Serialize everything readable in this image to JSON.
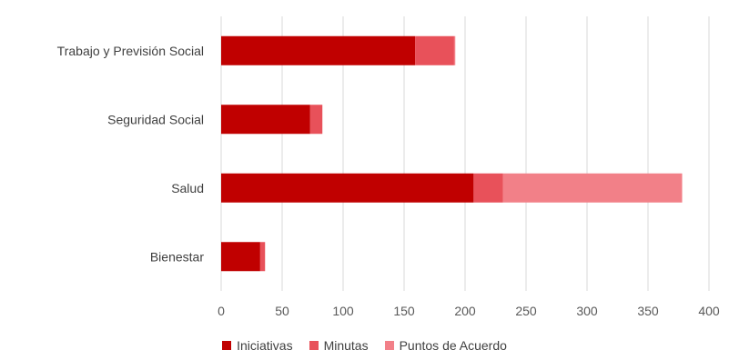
{
  "chart_data": {
    "type": "bar",
    "orientation": "horizontal",
    "stacked": true,
    "categories": [
      "Trabajo y Previsión Social",
      "Seguridad Social",
      "Salud",
      "Bienestar"
    ],
    "series": [
      {
        "name": "Iniciativas",
        "color": "#c00000",
        "values": [
          159,
          73,
          207,
          32
        ]
      },
      {
        "name": "Minutas",
        "color": "#e8515a",
        "values": [
          32,
          10,
          24,
          4
        ]
      },
      {
        "name": "Puntos de Acuerdo",
        "color": "#f28088",
        "values": [
          1,
          0,
          147,
          0
        ]
      }
    ],
    "xlim": [
      0,
      400
    ],
    "xticks": [
      0,
      50,
      100,
      150,
      200,
      250,
      300,
      350,
      400
    ],
    "grid": "vertical",
    "legend_position": "bottom"
  }
}
